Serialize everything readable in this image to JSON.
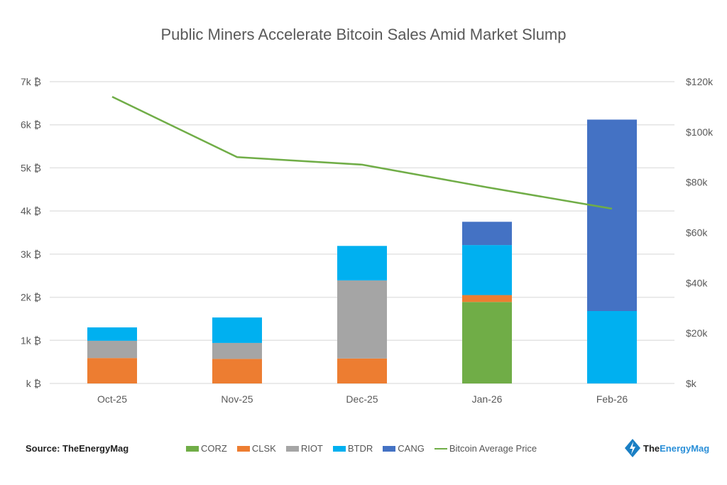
{
  "chart_data": {
    "type": "bar",
    "stacked": true,
    "title": "Public Miners Accelerate Bitcoin Sales Amid Market Slump",
    "categories": [
      "Oct-25",
      "Nov-25",
      "Dec-25",
      "Jan-26",
      "Feb-26"
    ],
    "series": [
      {
        "name": "CORZ",
        "color": "#70ad47",
        "values": [
          0,
          0,
          0,
          1.89,
          0
        ]
      },
      {
        "name": "CLSK",
        "color": "#ed7d31",
        "values": [
          0.59,
          0.57,
          0.58,
          0.16,
          0
        ]
      },
      {
        "name": "RIOT",
        "color": "#a5a5a5",
        "values": [
          0.4,
          0.37,
          1.81,
          0,
          0
        ]
      },
      {
        "name": "BTDR",
        "color": "#00b0f0",
        "values": [
          0.31,
          0.59,
          0.8,
          1.16,
          1.68
        ]
      },
      {
        "name": "CANG",
        "color": "#4472c4",
        "values": [
          0,
          0,
          0,
          0.54,
          4.44
        ]
      }
    ],
    "line": {
      "name": "Bitcoin Average Price",
      "color": "#70ad47",
      "axis": "right",
      "values": [
        114,
        90,
        87,
        78,
        69.5
      ]
    },
    "y_left": {
      "ylim": [
        0,
        7
      ],
      "ticks": [
        "k ₿",
        "1k ₿",
        "2k ₿",
        "3k ₿",
        "4k ₿",
        "5k ₿",
        "6k ₿",
        "7k ₿"
      ]
    },
    "y_right": {
      "ylim": [
        0,
        120
      ],
      "ticks": [
        "$k",
        "$20k",
        "$40k",
        "$60k",
        "$80k",
        "$100k",
        "$120k"
      ]
    },
    "grid": true,
    "legend_position": "bottom"
  },
  "source": "Source: TheEnergyMag",
  "logo": {
    "part1": "The",
    "part2": "EnergyMag"
  }
}
